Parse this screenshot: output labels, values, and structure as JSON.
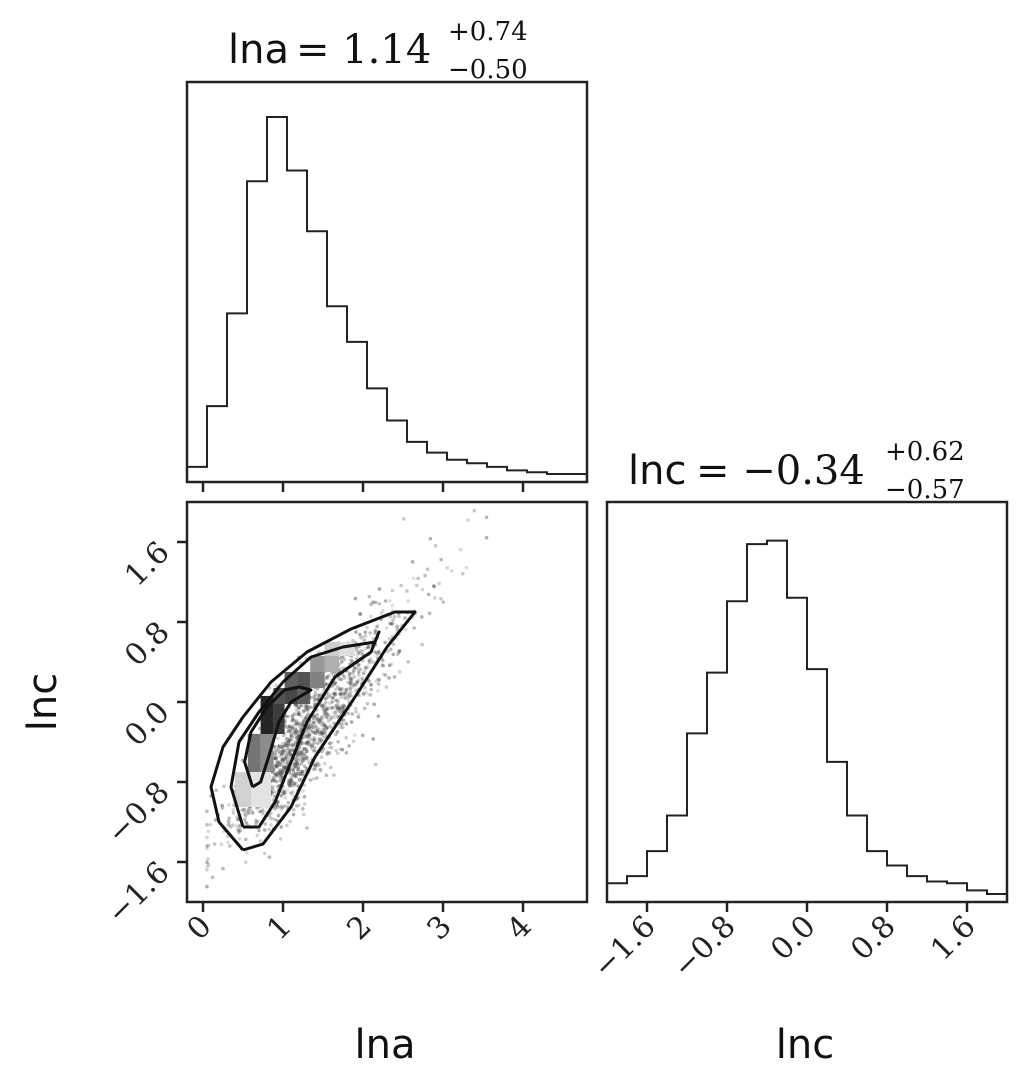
{
  "chart_data": [
    {
      "type": "histogram",
      "panel": "marginal-lna",
      "title": {
        "param": "lna",
        "eq": "= 1.14",
        "sup": "+0.74",
        "sub": "−0.50"
      },
      "xlim": [
        -0.2,
        4.8
      ],
      "bin_width": 0.25,
      "bins_start": -0.2,
      "heights": [
        0.02,
        0.19,
        0.45,
        0.82,
        1.0,
        0.85,
        0.68,
        0.47,
        0.37,
        0.24,
        0.15,
        0.09,
        0.06,
        0.04,
        0.03,
        0.02,
        0.01,
        0.005,
        0,
        0
      ],
      "xticks": [
        0,
        1,
        2,
        3,
        4
      ]
    },
    {
      "type": "histogram",
      "panel": "marginal-lnc",
      "title": {
        "param": "lnc",
        "eq": "= −0.34",
        "sup": "+0.62",
        "sub": "−0.57"
      },
      "xlim": [
        -2.0,
        2.0
      ],
      "bin_width": 0.2,
      "bins_start": -2.0,
      "heights": [
        0.03,
        0.05,
        0.12,
        0.22,
        0.45,
        0.62,
        0.82,
        0.98,
        0.99,
        0.83,
        0.63,
        0.37,
        0.22,
        0.12,
        0.08,
        0.05,
        0.035,
        0.03,
        0.01,
        0.0
      ],
      "xticks": [
        -1.6,
        -0.8,
        0.0,
        0.8,
        1.6
      ],
      "xticklabels": [
        "−1.6",
        "−0.8",
        "0.0",
        "0.8",
        "1.6"
      ],
      "xlabel": "lnc"
    },
    {
      "type": "scatter",
      "panel": "joint-lna-lnc",
      "xlim": [
        -0.2,
        4.8
      ],
      "ylim": [
        -2.0,
        2.0
      ],
      "xticks": [
        0,
        1,
        2,
        3,
        4
      ],
      "xticklabels": [
        "0",
        "1",
        "2",
        "3",
        "4"
      ],
      "yticks": [
        -1.6,
        -0.8,
        0.0,
        0.8,
        1.6
      ],
      "yticklabels": [
        "−1.6",
        "−0.8",
        "0.0",
        "0.8",
        "1.6"
      ],
      "xlabel": "lna",
      "ylabel": "lnc",
      "point_count": 1400,
      "density_cells": [
        {
          "x": 0.72,
          "y": -0.32,
          "w": 0.16,
          "h": 0.38,
          "v": 0.95
        },
        {
          "x": 0.88,
          "y": -0.32,
          "w": 0.14,
          "h": 0.38,
          "v": 0.85
        },
        {
          "x": 0.88,
          "y": -0.02,
          "w": 0.14,
          "h": 0.16,
          "v": 0.75
        },
        {
          "x": 1.02,
          "y": -0.02,
          "w": 0.16,
          "h": 0.16,
          "v": 0.8
        },
        {
          "x": 1.02,
          "y": 0.14,
          "w": 0.16,
          "h": 0.16,
          "v": 0.7
        },
        {
          "x": 1.18,
          "y": -0.02,
          "w": 0.16,
          "h": 0.16,
          "v": 0.7
        },
        {
          "x": 1.18,
          "y": 0.14,
          "w": 0.16,
          "h": 0.16,
          "v": 0.75
        },
        {
          "x": 1.34,
          "y": 0.14,
          "w": 0.18,
          "h": 0.16,
          "v": 0.55
        },
        {
          "x": 1.34,
          "y": 0.3,
          "w": 0.18,
          "h": 0.16,
          "v": 0.45
        },
        {
          "x": 1.52,
          "y": 0.3,
          "w": 0.18,
          "h": 0.16,
          "v": 0.35
        },
        {
          "x": 1.52,
          "y": 0.46,
          "w": 0.18,
          "h": 0.14,
          "v": 0.22
        },
        {
          "x": 1.7,
          "y": 0.46,
          "w": 0.2,
          "h": 0.14,
          "v": 0.15
        },
        {
          "x": 0.56,
          "y": -0.7,
          "w": 0.16,
          "h": 0.38,
          "v": 0.6
        },
        {
          "x": 0.72,
          "y": -0.7,
          "w": 0.16,
          "h": 0.38,
          "v": 0.5
        },
        {
          "x": 0.4,
          "y": -1.05,
          "w": 0.2,
          "h": 0.35,
          "v": 0.2
        },
        {
          "x": 0.6,
          "y": -1.05,
          "w": 0.25,
          "h": 0.35,
          "v": 0.12
        }
      ],
      "contours": [
        [
          [
            0.62,
            -0.85
          ],
          [
            0.52,
            -0.6
          ],
          [
            0.6,
            -0.3
          ],
          [
            0.8,
            -0.05
          ],
          [
            1.02,
            0.12
          ],
          [
            1.2,
            0.15
          ],
          [
            1.35,
            0.12
          ],
          [
            1.1,
            0.0
          ],
          [
            0.95,
            -0.2
          ],
          [
            0.82,
            -0.55
          ],
          [
            0.72,
            -0.8
          ],
          [
            0.62,
            -0.85
          ]
        ],
        [
          [
            0.5,
            -1.25
          ],
          [
            0.35,
            -0.85
          ],
          [
            0.45,
            -0.4
          ],
          [
            0.7,
            -0.1
          ],
          [
            1.0,
            0.2
          ],
          [
            1.35,
            0.45
          ],
          [
            1.75,
            0.55
          ],
          [
            2.15,
            0.6
          ],
          [
            2.2,
            0.7
          ],
          [
            2.1,
            0.5
          ],
          [
            1.65,
            0.25
          ],
          [
            1.3,
            -0.2
          ],
          [
            1.05,
            -0.7
          ],
          [
            0.9,
            -1.0
          ],
          [
            0.7,
            -1.25
          ],
          [
            0.5,
            -1.25
          ]
        ],
        [
          [
            0.5,
            -1.48
          ],
          [
            0.2,
            -1.2
          ],
          [
            0.1,
            -0.85
          ],
          [
            0.25,
            -0.45
          ],
          [
            0.5,
            -0.15
          ],
          [
            0.85,
            0.2
          ],
          [
            1.3,
            0.5
          ],
          [
            1.85,
            0.73
          ],
          [
            2.4,
            0.9
          ],
          [
            2.65,
            0.9
          ],
          [
            2.3,
            0.55
          ],
          [
            1.9,
            0.05
          ],
          [
            1.4,
            -0.55
          ],
          [
            1.1,
            -1.05
          ],
          [
            0.75,
            -1.42
          ],
          [
            0.5,
            -1.48
          ]
        ]
      ]
    }
  ]
}
